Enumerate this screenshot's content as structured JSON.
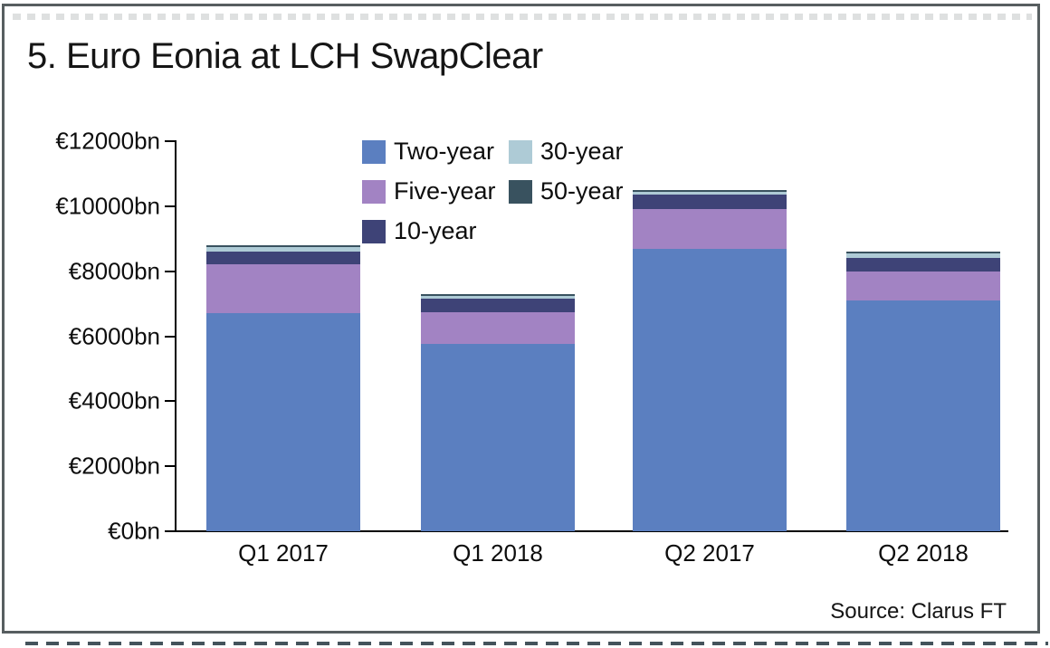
{
  "title": "5. Euro Eonia at LCH SwapClear",
  "source_note": "Source: Clarus FT",
  "colors": {
    "frame_border": "#575e60",
    "axis": "#000000",
    "text": "#111111"
  },
  "chart_data": {
    "type": "bar",
    "stacked": true,
    "title": "5. Euro Eonia at LCH SwapClear",
    "xlabel": "",
    "ylabel": "",
    "ylim": [
      0,
      12000
    ],
    "ytick_step": 2000,
    "y_tick_labels": [
      "€0bn",
      "€2000bn",
      "€4000bn",
      "€6000bn",
      "€8000bn",
      "€10000bn",
      "€12000bn"
    ],
    "grid": false,
    "legend_position": "top-center",
    "legend_columns": [
      [
        0,
        1,
        2
      ],
      [
        3,
        4
      ]
    ],
    "categories": [
      "Q1 2017",
      "Q1 2018",
      "Q2 2017",
      "Q2 2018"
    ],
    "series": [
      {
        "name": "Two-year",
        "color": "#5b7fc0",
        "values": [
          6700,
          5750,
          8700,
          7100
        ]
      },
      {
        "name": "Five-year",
        "color": "#a283c3",
        "values": [
          1500,
          1000,
          1200,
          900
        ]
      },
      {
        "name": "10-year",
        "color": "#3e4377",
        "values": [
          400,
          400,
          450,
          400
        ]
      },
      {
        "name": "30-year",
        "color": "#aecbd6",
        "values": [
          150,
          100,
          100,
          150
        ]
      },
      {
        "name": "50-year",
        "color": "#39525f",
        "values": [
          50,
          50,
          50,
          50
        ]
      }
    ]
  }
}
